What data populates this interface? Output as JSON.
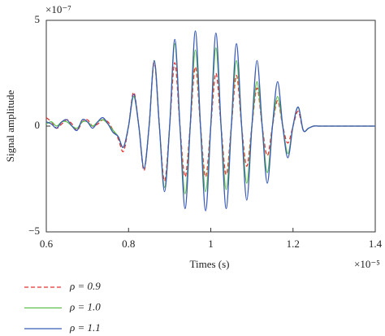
{
  "chart_data": {
    "type": "line",
    "x_label": "Times (s)",
    "y_label": "Signal amplitude",
    "x_multiplier": "×10⁻⁵",
    "y_multiplier": "×10⁻⁷",
    "xlim": [
      0.6,
      1.4
    ],
    "ylim": [
      -5,
      5
    ],
    "xticks": [
      0.6,
      0.8,
      1,
      1.2,
      1.4
    ],
    "yticks": [
      {
        "value": -5,
        "label": "−5"
      },
      0,
      5
    ],
    "x": [
      0.6,
      0.6125,
      0.625,
      0.6375,
      0.65,
      0.6625,
      0.675,
      0.6875,
      0.7,
      0.7125,
      0.725,
      0.7375,
      0.75,
      0.7625,
      0.775,
      0.7875,
      0.8,
      0.8125,
      0.825,
      0.8375,
      0.85,
      0.8625,
      0.875,
      0.8875,
      0.9,
      0.9125,
      0.925,
      0.9375,
      0.95,
      0.9625,
      0.975,
      0.9875,
      1.0,
      1.0125,
      1.025,
      1.0375,
      1.05,
      1.0625,
      1.075,
      1.0875,
      1.1,
      1.1125,
      1.125,
      1.1375,
      1.15,
      1.1625,
      1.175,
      1.1875,
      1.2,
      1.2125,
      1.225,
      1.2375,
      1.25,
      1.2625,
      1.275,
      1.2875,
      1.3,
      1.3125,
      1.325,
      1.3375,
      1.35,
      1.3625,
      1.375,
      1.3875,
      1.4
    ],
    "series": [
      {
        "name": "ρ = 0.9",
        "color": "#e8302a",
        "dash": true,
        "values": [
          0.4,
          0.2,
          -0.1,
          0.1,
          0.3,
          0.1,
          -0.2,
          0.2,
          0.3,
          0,
          0.1,
          0.3,
          0.2,
          -0.2,
          -0.6,
          -1.2,
          0,
          1.6,
          0,
          -2.1,
          0,
          3.0,
          0,
          -2.6,
          0,
          3.0,
          0,
          -2.4,
          0,
          2.8,
          0,
          -2.4,
          0,
          2.5,
          0,
          -2.3,
          0,
          2.4,
          0,
          -1.9,
          0,
          1.8,
          0,
          -1.4,
          0,
          1.2,
          0,
          -0.8,
          0,
          0.7,
          -0.2,
          -0.1,
          0,
          0,
          0,
          0,
          0,
          0,
          0,
          0,
          0,
          0,
          0,
          0,
          0
        ]
      },
      {
        "name": "ρ = 1.0",
        "color": "#5cbf4a",
        "dash": false,
        "values": [
          0.1,
          0.2,
          0,
          0.2,
          0.2,
          0,
          -0.1,
          0.2,
          0.2,
          0,
          0.2,
          0.3,
          0.1,
          -0.2,
          -0.5,
          -1.0,
          0,
          1.4,
          0,
          -2.0,
          0,
          3.1,
          0,
          -2.9,
          0,
          3.9,
          0,
          -3.2,
          0,
          3.6,
          0,
          -3.1,
          0,
          3.7,
          0,
          -3.0,
          0,
          3.1,
          0,
          -2.7,
          0,
          2.1,
          0,
          -2.2,
          0,
          1.4,
          0,
          -1.3,
          0,
          0.9,
          -0.2,
          -0.1,
          0,
          0,
          0,
          0,
          0,
          0,
          0,
          0,
          0,
          0,
          0,
          0,
          0
        ]
      },
      {
        "name": "ρ = 1.1",
        "color": "#3a5bb8",
        "dash": false,
        "values": [
          0.2,
          0.1,
          -0.1,
          0.2,
          0.3,
          0,
          -0.2,
          0.3,
          0.2,
          -0.1,
          0.2,
          0.4,
          0.1,
          -0.3,
          -0.5,
          -1.0,
          0,
          1.5,
          0,
          -2.0,
          0,
          3.1,
          0,
          -3.1,
          0,
          4.1,
          0,
          -3.9,
          0,
          4.5,
          0,
          -4.0,
          0,
          4.4,
          0,
          -3.9,
          0,
          3.9,
          0,
          -3.5,
          0,
          3.1,
          0,
          -2.7,
          0,
          2.1,
          0,
          -1.5,
          0,
          0.9,
          -0.2,
          -0.1,
          0,
          0,
          0,
          0,
          0,
          0,
          0,
          0,
          0,
          0,
          0,
          0,
          0
        ]
      }
    ]
  }
}
